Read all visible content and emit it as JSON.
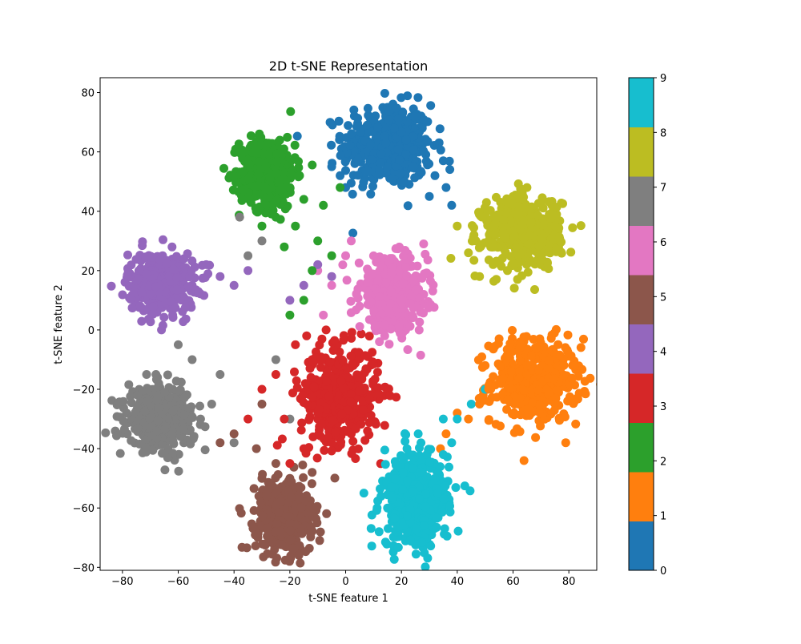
{
  "chart_data": {
    "type": "scatter",
    "title": "2D t-SNE Representation",
    "xlabel": "t-SNE feature 1",
    "ylabel": "t-SNE feature 2",
    "xlim": [
      -88,
      90
    ],
    "ylim": [
      -81,
      85
    ],
    "xticks": [
      -80,
      -60,
      -40,
      -20,
      0,
      20,
      40,
      60,
      80
    ],
    "yticks": [
      -80,
      -60,
      -40,
      -20,
      0,
      20,
      40,
      60,
      80
    ],
    "xtick_labels": [
      "−80",
      "−60",
      "−40",
      "−20",
      "0",
      "20",
      "40",
      "60",
      "80"
    ],
    "ytick_labels": [
      "−80",
      "−60",
      "−40",
      "−20",
      "0",
      "20",
      "40",
      "60",
      "80"
    ],
    "grid": false,
    "colorbar": {
      "range": [
        0,
        9
      ],
      "ticks": [
        0,
        1,
        2,
        3,
        4,
        5,
        6,
        7,
        8,
        9
      ],
      "tick_labels": [
        "0",
        "1",
        "2",
        "3",
        "4",
        "5",
        "6",
        "7",
        "8",
        "9"
      ],
      "colors": [
        "#1f77b4",
        "#ff7f0e",
        "#2ca02c",
        "#d62728",
        "#9467bd",
        "#8c564b",
        "#e377c2",
        "#7f7f7f",
        "#bcbd22",
        "#17becf"
      ]
    },
    "clusters": [
      {
        "label": 0,
        "center": [
          15,
          62
        ],
        "spread": [
          8,
          7
        ],
        "points": [
          [
            15,
            75
          ],
          [
            5,
            68
          ],
          [
            22,
            70
          ],
          [
            28,
            60
          ],
          [
            35,
            57
          ],
          [
            8,
            55
          ],
          [
            -2,
            52
          ],
          [
            20,
            50
          ],
          [
            30,
            45
          ],
          [
            36,
            48
          ],
          [
            12,
            65
          ],
          [
            18,
            58
          ],
          [
            -5,
            55
          ],
          [
            24,
            55
          ],
          [
            32,
            52
          ],
          [
            10,
            70
          ],
          [
            3,
            60
          ],
          [
            26,
            66
          ],
          [
            38,
            42
          ],
          [
            0,
            48
          ]
        ]
      },
      {
        "label": 1,
        "center": [
          68,
          -17
        ],
        "spread": [
          8,
          7
        ],
        "points": [
          [
            60,
            -5
          ],
          [
            75,
            -8
          ],
          [
            80,
            -18
          ],
          [
            70,
            -28
          ],
          [
            58,
            -22
          ],
          [
            50,
            -12
          ],
          [
            65,
            -15
          ],
          [
            72,
            -20
          ],
          [
            78,
            -10
          ],
          [
            62,
            -25
          ],
          [
            55,
            -3
          ],
          [
            68,
            -6
          ],
          [
            48,
            -25
          ],
          [
            44,
            -30
          ],
          [
            36,
            -35
          ],
          [
            40,
            -28
          ],
          [
            34,
            -40
          ],
          [
            52,
            -20
          ]
        ]
      },
      {
        "label": 2,
        "center": [
          -28,
          53
        ],
        "spread": [
          5,
          6
        ],
        "points": [
          [
            -28,
            60
          ],
          [
            -22,
            55
          ],
          [
            -34,
            52
          ],
          [
            -25,
            45
          ],
          [
            -30,
            50
          ],
          [
            -20,
            48
          ],
          [
            -15,
            44
          ],
          [
            -35,
            58
          ],
          [
            -32,
            40
          ],
          [
            -18,
            35
          ],
          [
            -10,
            30
          ],
          [
            -25,
            38
          ],
          [
            -30,
            35
          ],
          [
            -5,
            25
          ],
          [
            -12,
            20
          ],
          [
            -22,
            28
          ],
          [
            -8,
            42
          ],
          [
            -2,
            48
          ],
          [
            -15,
            10
          ],
          [
            -20,
            5
          ]
        ]
      },
      {
        "label": 3,
        "center": [
          -2,
          -22
        ],
        "spread": [
          7,
          8
        ],
        "points": [
          [
            0,
            -15
          ],
          [
            -5,
            -25
          ],
          [
            5,
            -20
          ],
          [
            -10,
            -30
          ],
          [
            2,
            -35
          ],
          [
            -8,
            -18
          ],
          [
            8,
            -28
          ],
          [
            -15,
            -40
          ],
          [
            -20,
            -45
          ],
          [
            -12,
            -10
          ],
          [
            -18,
            -5
          ],
          [
            -25,
            -15
          ],
          [
            -5,
            -38
          ],
          [
            -3,
            -5
          ],
          [
            -30,
            -20
          ],
          [
            -22,
            -30
          ],
          [
            -14,
            -2
          ],
          [
            -7,
            0
          ],
          [
            3,
            -10
          ],
          [
            -35,
            -30
          ]
        ]
      },
      {
        "label": 4,
        "center": [
          -66,
          16
        ],
        "spread": [
          6,
          5
        ],
        "points": [
          [
            -75,
            18
          ],
          [
            -70,
            22
          ],
          [
            -65,
            12
          ],
          [
            -60,
            20
          ],
          [
            -55,
            15
          ],
          [
            -68,
            8
          ],
          [
            -72,
            14
          ],
          [
            -58,
            24
          ],
          [
            -50,
            22
          ],
          [
            -45,
            18
          ],
          [
            -62,
            5
          ],
          [
            -66,
            0
          ],
          [
            -40,
            15
          ],
          [
            -35,
            20
          ],
          [
            -10,
            22
          ],
          [
            -5,
            18
          ],
          [
            -15,
            15
          ],
          [
            -20,
            10
          ]
        ]
      },
      {
        "label": 5,
        "center": [
          -22,
          -63
        ],
        "spread": [
          5,
          6
        ],
        "points": [
          [
            -22,
            -70
          ],
          [
            -28,
            -60
          ],
          [
            -18,
            -65
          ],
          [
            -25,
            -55
          ],
          [
            -15,
            -58
          ],
          [
            -30,
            -50
          ],
          [
            -20,
            -50
          ],
          [
            -12,
            -48
          ],
          [
            -25,
            -45
          ],
          [
            -32,
            -40
          ],
          [
            -18,
            -72
          ],
          [
            -26,
            -68
          ],
          [
            -40,
            -35
          ],
          [
            -45,
            -38
          ],
          [
            -30,
            -25
          ]
        ]
      },
      {
        "label": 6,
        "center": [
          17,
          12
        ],
        "spread": [
          6,
          6
        ],
        "points": [
          [
            15,
            20
          ],
          [
            22,
            15
          ],
          [
            10,
            10
          ],
          [
            18,
            5
          ],
          [
            25,
            8
          ],
          [
            8,
            18
          ],
          [
            12,
            0
          ],
          [
            20,
            22
          ],
          [
            28,
            12
          ],
          [
            5,
            8
          ],
          [
            -5,
            15
          ],
          [
            -10,
            20
          ],
          [
            0,
            25
          ],
          [
            -8,
            5
          ],
          [
            2,
            30
          ],
          [
            14,
            -2
          ]
        ]
      },
      {
        "label": 7,
        "center": [
          -66,
          -30
        ],
        "spread": [
          6,
          5
        ],
        "points": [
          [
            -70,
            -28
          ],
          [
            -65,
            -35
          ],
          [
            -60,
            -25
          ],
          [
            -72,
            -32
          ],
          [
            -58,
            -38
          ],
          [
            -62,
            -20
          ],
          [
            -68,
            -15
          ],
          [
            -55,
            -10
          ],
          [
            -60,
            -5
          ],
          [
            -52,
            -30
          ],
          [
            -48,
            -25
          ],
          [
            -40,
            -38
          ],
          [
            -45,
            -15
          ],
          [
            -35,
            25
          ],
          [
            -30,
            30
          ],
          [
            -38,
            38
          ],
          [
            -20,
            -30
          ],
          [
            -25,
            -10
          ]
        ]
      },
      {
        "label": 8,
        "center": [
          63,
          33
        ],
        "spread": [
          7,
          6
        ],
        "points": [
          [
            60,
            45
          ],
          [
            68,
            40
          ],
          [
            72,
            30
          ],
          [
            55,
            35
          ],
          [
            62,
            25
          ],
          [
            50,
            38
          ],
          [
            65,
            48
          ],
          [
            75,
            35
          ],
          [
            58,
            20
          ],
          [
            52,
            28
          ],
          [
            46,
            32
          ],
          [
            70,
            25
          ],
          [
            48,
            18
          ],
          [
            44,
            26
          ],
          [
            40,
            35
          ]
        ]
      },
      {
        "label": 9,
        "center": [
          25,
          -57
        ],
        "spread": [
          6,
          8
        ],
        "points": [
          [
            20,
            -65
          ],
          [
            28,
            -55
          ],
          [
            15,
            -60
          ],
          [
            25,
            -70
          ],
          [
            32,
            -50
          ],
          [
            18,
            -48
          ],
          [
            22,
            -40
          ],
          [
            30,
            -45
          ],
          [
            35,
            -42
          ],
          [
            12,
            -68
          ],
          [
            38,
            -38
          ],
          [
            26,
            -35
          ],
          [
            40,
            -30
          ],
          [
            45,
            -25
          ],
          [
            50,
            -20
          ],
          [
            35,
            -30
          ]
        ]
      }
    ]
  }
}
